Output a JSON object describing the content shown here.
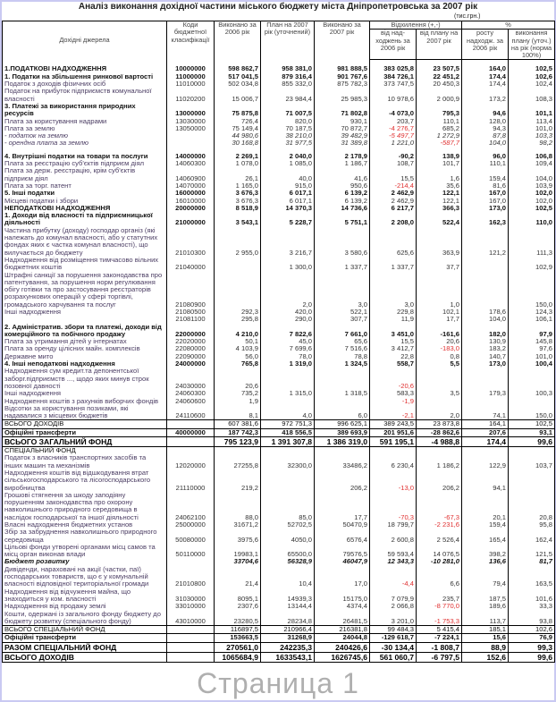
{
  "title": "Аналіз виконання дохідної частини міського бюджету міста Дніпропетровська за 2007 рік",
  "unit": "(тис.грн.)",
  "watermark": "Страница 1",
  "headers": {
    "source": "Дохідні джерела",
    "code": "Коди бюджетної класифікації",
    "done2006": "Виконано за 2006 рік",
    "plan2007": "План на 2007 рік (уточнений)",
    "done2007": "Виконано за 2007 рік",
    "deviation": "Відхилення (+,-)",
    "dev_vs2006": "від над-ходжень за 2006 рік",
    "dev_vsplan": "від плану на 2007 рік",
    "percent": "%",
    "growth": "росту надходж. за 2006 рік",
    "plan_exec": "виконання плану (уточ.) на рік (норма 100%)"
  },
  "colors": {
    "negative": "#e03030",
    "frame": "#c9c9f2"
  },
  "rows": [
    {
      "style": "blank"
    },
    {
      "style": "bold",
      "name": "1.ПОДАТКОВІ НАДХОДЖЕННЯ",
      "code": "10000000",
      "v": [
        "598 862,7",
        "958 381,0",
        "981 888,5",
        "383 025,8",
        "23 507,5",
        "164,0",
        "102,5"
      ]
    },
    {
      "style": "bold",
      "name": "1. Податки на збільшення ринкової вартості",
      "code": "11000000",
      "v": [
        "517 041,5",
        "879 316,4",
        "901 767,6",
        "384 726,1",
        "22 451,2",
        "174,4",
        "102,6"
      ]
    },
    {
      "style": "normal",
      "name": "Податок з доходів фізичних осіб",
      "code": "11010000",
      "v": [
        "502 034,8",
        "855 332,0",
        "875 782,3",
        "373 747,5",
        "20 450,3",
        "174,4",
        "102,4"
      ]
    },
    {
      "style": "normal",
      "name": "Податок на прибуток підприємств комунальної власності",
      "code": "11020200",
      "v": [
        "15 006,7",
        "23 984,4",
        "25 985,3",
        "10 978,6",
        "2 000,9",
        "173,2",
        "108,3"
      ]
    },
    {
      "style": "bold",
      "name": "3. Платежі за використання природних ресурсів",
      "code": "13000000",
      "v": [
        "75 875,8",
        "71 007,5",
        "71 802,8",
        "-4 073,0",
        "795,3",
        "94,6",
        "101,1"
      ]
    },
    {
      "style": "normal",
      "name": "Плата за користування надрами",
      "code": "13030000",
      "v": [
        "726,4",
        "820,0",
        "930,1",
        "203,7",
        "110,1",
        "128,0",
        "113,4"
      ]
    },
    {
      "style": "normal",
      "name": "Плата за землю",
      "code": "13050000",
      "v": [
        "75 149,4",
        "70 187,5",
        "70 872,7",
        "-4 276,7",
        "685,2",
        "94,3",
        "101,0"
      ]
    },
    {
      "style": "italic",
      "name": " - податок на землю",
      "code": "",
      "v": [
        "44 980,6",
        "38 210,0",
        "39 482,9",
        "-5 497,7",
        "1 272,9",
        "87,8",
        "103,3"
      ]
    },
    {
      "style": "italic",
      "name": " - орендна плата за землю",
      "code": "",
      "v": [
        "30 168,8",
        "31 977,5",
        "31 389,8",
        "1 221,0",
        "-587,7",
        "104,0",
        "98,2"
      ]
    },
    {
      "style": "blank"
    },
    {
      "style": "bold",
      "name": "4. Внутрішні податки на товари та послуги",
      "code": "14000000",
      "v": [
        "2 269,1",
        "2 040,0",
        "2 178,9",
        "-90,2",
        "138,9",
        "96,0",
        "106,8"
      ]
    },
    {
      "style": "normal",
      "name": "Плата за реєстрацію суб'єктів підприєм діял",
      "code": "14060300",
      "v": [
        "1 078,0",
        "1 085,0",
        "1 186,7",
        "108,7",
        "101,7",
        "110,1",
        "109,4"
      ]
    },
    {
      "style": "normal",
      "name": "Плата за держ. реєстрацію, крім суб'єктів підприєм діял",
      "code": "14060900",
      "v": [
        "26,1",
        "40,0",
        "41,6",
        "15,5",
        "1,6",
        "159,4",
        "104,0"
      ]
    },
    {
      "style": "normal",
      "name": "Плата за торг. патент",
      "code": "14070000",
      "v": [
        "1 165,0",
        "915,0",
        "950,6",
        "-214,4",
        "35,6",
        "81,6",
        "103,9"
      ]
    },
    {
      "style": "bold",
      "name": "5. Інші податки",
      "code": "16000000",
      "v": [
        "3 676,3",
        "6 017,1",
        "6 139,2",
        "2 462,9",
        "122,1",
        "167,0",
        "102,0"
      ]
    },
    {
      "style": "normal",
      "name": "Місцеві податки і збори",
      "code": "16010000",
      "v": [
        "3 676,3",
        "6 017,1",
        "6 139,2",
        "2 462,9",
        "122,1",
        "167,0",
        "102,0"
      ]
    },
    {
      "style": "bold",
      "name": "НЕПОДАТКОВІ НАДХОДЖЕННЯ",
      "code": "20000000",
      "v": [
        "8 518,9",
        "14 370,3",
        "14 736,6",
        "6 217,7",
        "366,3",
        "173,0",
        "102,5"
      ]
    },
    {
      "style": "bold",
      "name": "1. Доходи від власності та підприємницької діяльності",
      "code": "21000000",
      "v": [
        "3 543,1",
        "5 228,7",
        "5 751,1",
        "2 208,0",
        "522,4",
        "162,3",
        "110,0"
      ]
    },
    {
      "style": "normal",
      "name": "Частина прибутку (доходу) господар організ (які належать до комунал власності, або у статутних фондах яких є частка комунал власності), що вилучається до бюджету",
      "code": "21010300",
      "v": [
        "2 955,0",
        "3 216,7",
        "3 580,6",
        "625,6",
        "363,9",
        "121,2",
        "111,3"
      ]
    },
    {
      "style": "normal",
      "name": "Надходження від розміщення тимчасово вільних бюджетних коштів",
      "code": "21040000",
      "v": [
        "",
        "1 300,0",
        "1 337,7",
        "1 337,7",
        "37,7",
        "",
        "102,9"
      ]
    },
    {
      "style": "normal",
      "name": "Штрафні санкції за порушення законодавства про патентування, за порушення норм регулювання обігу готівки та про застосування реєстраторів розрахункових операцій у сфері торгівлі, громадського харчування та послуг",
      "code": "21080900",
      "v": [
        "",
        "2,0",
        "3,0",
        "3,0",
        "1,0",
        "",
        "150,0"
      ]
    },
    {
      "style": "normal",
      "name": "Інші надходження",
      "code": "21080500",
      "v": [
        "292,3",
        "420,0",
        "522,1",
        "229,8",
        "102,1",
        "178,6",
        "124,3"
      ]
    },
    {
      "style": "normal",
      "name": "",
      "code": "21081100",
      "v": [
        "295,8",
        "290,0",
        "307,7",
        "11,9",
        "17,7",
        "104,0",
        "106,1"
      ]
    },
    {
      "style": "bold",
      "name": "2. Адміністратив. збори та платежі, доходи від комерційного та побічного продажу",
      "code": "22000000",
      "v": [
        "4 210,0",
        "7 822,6",
        "7 661,0",
        "3 451,0",
        "-161,6",
        "182,0",
        "97,9"
      ]
    },
    {
      "style": "normal",
      "name": "Плата за утримання дітей у інтернатах",
      "code": "22020000",
      "v": [
        "50,1",
        "45,0",
        "65,6",
        "15,5",
        "20,6",
        "130,9",
        "145,8"
      ]
    },
    {
      "style": "normal",
      "name": "Плата за оренду цілісних майн. комплексів",
      "code": "22080000",
      "v": [
        "4 103,9",
        "7 699,6",
        "7 516,6",
        "3 412,7",
        "-183,0",
        "183,2",
        "97,6"
      ]
    },
    {
      "style": "normal",
      "name": "Державне мито",
      "code": "22090000",
      "v": [
        "56,0",
        "78,0",
        "78,8",
        "22,8",
        "0,8",
        "140,7",
        "101,0"
      ]
    },
    {
      "style": "bold",
      "name": "4. Інші неподаткові надходження",
      "code": "24000000",
      "v": [
        "765,8",
        "1 319,0",
        "1 324,5",
        "558,7",
        "5,5",
        "173,0",
        "100,4"
      ]
    },
    {
      "style": "normal",
      "name": "Надходження сум кредит.та депонентської заборг.підприємств ..., щодо яких минув строк позовної давності",
      "code": "24030000",
      "v": [
        "20,6",
        "",
        "",
        "-20,6",
        "",
        "",
        ""
      ]
    },
    {
      "style": "normal",
      "name": "Інші надходження",
      "code": "24060300",
      "v": [
        "735,2",
        "1 315,0",
        "1 318,5",
        "583,3",
        "3,5",
        "179,3",
        "100,3"
      ]
    },
    {
      "style": "normal",
      "name": "Надходження коштів з рахунків виборчих фондів",
      "code": "24060600",
      "v": [
        "1,9",
        "",
        "",
        "-1,9",
        "",
        "",
        ""
      ]
    },
    {
      "style": "normal",
      "name": "Відсотки за користування позиками, які надавалися з місцевих бюджетів",
      "code": "24110600",
      "v": [
        "8,1",
        "4,0",
        "6,0",
        "-2,1",
        "2,0",
        "74,1",
        "150,0"
      ]
    },
    {
      "style": "total",
      "name": "ВСЬОГО ДОХОДІВ",
      "code": "",
      "v": [
        "607 381,6",
        "972 751,3",
        "996 625,1",
        "389 243,5",
        "23 873,8",
        "164,1",
        "102,5"
      ]
    },
    {
      "style": "bold",
      "name": "Офіційні трансферти",
      "code": "40000000",
      "v": [
        "187 742,3",
        "418 556,5",
        "389 693,9",
        "201 951,6",
        "-28 862,6",
        "207,6",
        "93,1"
      ]
    },
    {
      "style": "grand",
      "name": "ВСЬОГО ЗАГАЛЬНИЙ ФОНД",
      "code": "",
      "v": [
        "795 123,9",
        "1 391 307,8",
        "1 386 319,0",
        "591 195,1",
        "-4 988,8",
        "174,4",
        "99,6"
      ]
    },
    {
      "style": "section",
      "name": "СПЕЦІАЛЬНИЙ ФОНД",
      "code": "",
      "v": [
        "",
        "",
        "",
        "",
        "",
        "",
        ""
      ]
    },
    {
      "style": "normal",
      "name": "Податок з власників транспортних засобів та інших машин та механізмів",
      "code": "12020000",
      "v": [
        "27255,8",
        "32300,0",
        "33486,2",
        "6 230,4",
        "1 186,2",
        "122,9",
        "103,7"
      ]
    },
    {
      "style": "normal",
      "name": "Надходження коштів від відшкодування втрат сільськогосподарського та лісогосподарського виробництва",
      "code": "21110000",
      "v": [
        "219,2",
        "",
        "206,2",
        "-13,0",
        "206,2",
        "94,1",
        ""
      ]
    },
    {
      "style": "normal",
      "name": "Грошові стягнення за шкоду заподіяну порушенням законодавства про охорону навколишнього природного середовища в наслідок господарської та іншої діяльності",
      "code": "24062100",
      "v": [
        "88,0",
        "85,0",
        "17,7",
        "-70,3",
        "-67,3",
        "20,1",
        "20,8"
      ]
    },
    {
      "style": "normal",
      "name": "Власні надходження бюджетних установ",
      "code": "25000000",
      "v": [
        "31671,2",
        "52702,5",
        "50470,9",
        "18 799,7",
        "-2 231,6",
        "159,4",
        "95,8"
      ]
    },
    {
      "style": "normal",
      "name": "Збір за забруднення навколишнього природного середовища",
      "code": "50080000",
      "v": [
        "3975,6",
        "4050,0",
        "6576,4",
        "2 600,8",
        "2 526,4",
        "165,4",
        "162,4"
      ]
    },
    {
      "style": "normal",
      "name": "Цільові фонди утворені органами місц самов та місц орган виконав влади",
      "code": "50110000",
      "v": [
        "19983,1",
        "65500,0",
        "79576,5",
        "59 593,4",
        "14 076,5",
        "398,2",
        "121,5"
      ]
    },
    {
      "style": "bolditalic",
      "name": "Бюджет розвитку",
      "code": "",
      "v": [
        "33704,6",
        "56328,9",
        "46047,9",
        "12 343,3",
        "-10 281,0",
        "136,6",
        "81,7"
      ]
    },
    {
      "style": "normal",
      "name": "Дивіденди, нараховані на акції (частки, паї) господарських товариств, що є у комунальній власності відповідної територіальної громади",
      "code": "21010800",
      "v": [
        "21,4",
        "10,4",
        "17,0",
        "-4,4",
        "6,6",
        "79,4",
        "163,5"
      ]
    },
    {
      "style": "normal",
      "name": "Надходження від відчуження майна, що знаходиться у ком. власності",
      "code": "31030000",
      "v": [
        "8095,1",
        "14939,3",
        "15175,0",
        "7 079,9",
        "235,7",
        "187,5",
        "101,6"
      ]
    },
    {
      "style": "normal",
      "name": "Надходження від продажу землі",
      "code": "33010000",
      "v": [
        "2307,6",
        "13144,4",
        "4374,4",
        "2 066,8",
        "-8 770,0",
        "189,6",
        "33,3"
      ]
    },
    {
      "style": "normal",
      "name": "Кошти, одержані із загального фонду бюджету до бюджету розвитку (спеціального фонду)",
      "code": "43010000",
      "v": [
        "23280,5",
        "28234,8",
        "26481,5",
        "3 201,0",
        "-1 753,3",
        "113,7",
        "93,8"
      ]
    },
    {
      "style": "total",
      "name": "ВСЬОГО СПЕЦІАЛЬНИЙ ФОНД",
      "code": "",
      "v": [
        "116897,5",
        "210966,4",
        "216381,8",
        "99 484,3",
        "5 415,4",
        "185,1",
        "102,6"
      ]
    },
    {
      "style": "bold",
      "name": "Офіційні трансферти",
      "code": "",
      "v": [
        "153663,5",
        "31268,9",
        "24044,8",
        "-129 618,7",
        "-7 224,1",
        "15,6",
        "76,9"
      ]
    },
    {
      "style": "grand",
      "name": "РАЗОМ СПЕЦІАЛЬНИЙ ФОНД",
      "code": "",
      "v": [
        "270561,0",
        "242235,3",
        "240426,6",
        "-30 134,4",
        "-1 808,7",
        "88,9",
        "99,3"
      ]
    },
    {
      "style": "grand",
      "name": "ВСЬОГО ДОХОДІВ",
      "code": "",
      "v": [
        "1065684,9",
        "1633543,1",
        "1626745,6",
        "561 060,7",
        "-6 797,5",
        "152,6",
        "99,6"
      ]
    }
  ]
}
